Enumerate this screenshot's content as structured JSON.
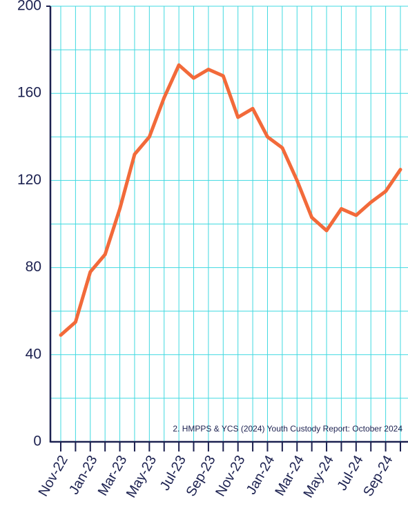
{
  "chart_data": {
    "type": "line",
    "categories": [
      "Nov-22",
      null,
      "Jan-23",
      null,
      "Mar-23",
      null,
      "May-23",
      null,
      "Jul-23",
      null,
      "Sep-23",
      null,
      "Nov-23",
      null,
      "Jan-24",
      null,
      "Mar-24",
      null,
      "May-24",
      null,
      "Jul-24",
      null,
      "Sep-24",
      null
    ],
    "series": [
      {
        "color": "#f26a3a",
        "values": [
          49,
          55,
          78,
          86,
          107,
          132,
          140,
          158,
          173,
          167,
          171,
          168,
          149,
          153,
          140,
          135,
          120,
          103,
          97,
          107,
          104,
          110,
          115,
          125
        ]
      }
    ],
    "ylim": [
      0,
      200
    ],
    "yticks": [
      0,
      40,
      80,
      120,
      160,
      200
    ],
    "grid": true,
    "grid_color": "#3fd9e0",
    "annotation": "2. HMPPS & YCS (2024) Youth Custody Report: October 2024"
  }
}
